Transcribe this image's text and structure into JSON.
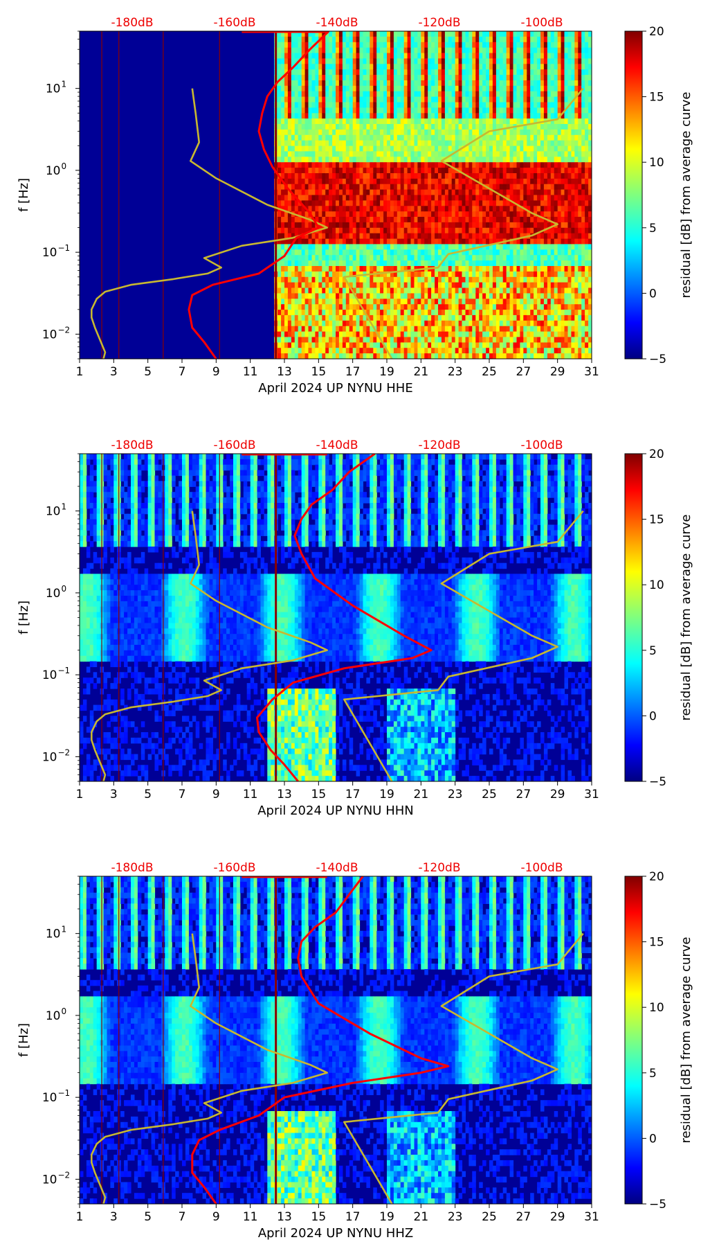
{
  "chart_data": [
    {
      "type": "heatmap",
      "title": "",
      "xlabel": "April 2024 UP NYNU  HHE",
      "ylabel": "f [Hz]",
      "x_ticks": [
        "1",
        "3",
        "5",
        "7",
        "9",
        "11",
        "13",
        "15",
        "17",
        "19",
        "21",
        "23",
        "25",
        "27",
        "29",
        "31"
      ],
      "xlim": [
        1,
        31
      ],
      "y_ticks": [
        "10^-2",
        "10^-1",
        "10^0",
        "10^1"
      ],
      "ylim": [
        0.005,
        50
      ],
      "y_scale": "log",
      "top_axis_labels": [
        "-180dB",
        "-160dB",
        "-140dB",
        "-120dB",
        "-100dB"
      ],
      "colorbar": {
        "label": "residual [dB] from average curve",
        "ticks": [
          "20",
          "15",
          "10",
          "5",
          "0",
          "−5"
        ],
        "range": [
          -5,
          20
        ],
        "colormap": "jet"
      },
      "data_gap_until_day": 12.3,
      "series": [
        {
          "name": "yellow reference curve",
          "color": "#c8b830",
          "points": [
            [
              2.4,
              0.005
            ],
            [
              2.5,
              0.006
            ],
            [
              1.9,
              0.012
            ],
            [
              1.7,
              0.016
            ],
            [
              1.7,
              0.02
            ],
            [
              2.0,
              0.027
            ],
            [
              2.5,
              0.033
            ],
            [
              4.0,
              0.04
            ],
            [
              6.5,
              0.047
            ],
            [
              8.5,
              0.055
            ],
            [
              9.3,
              0.065
            ],
            [
              8.3,
              0.085
            ],
            [
              10.5,
              0.12
            ],
            [
              13.5,
              0.15
            ],
            [
              15.5,
              0.2
            ],
            [
              14.5,
              0.25
            ],
            [
              12.0,
              0.38
            ],
            [
              9.0,
              0.8
            ],
            [
              7.5,
              1.3
            ],
            [
              8.0,
              2.2
            ],
            [
              7.8,
              5.0
            ],
            [
              7.6,
              10.0
            ]
          ]
        },
        {
          "name": "yellow reference curve 2",
          "color": "#c8b830",
          "points": [
            [
              19.3,
              0.005
            ],
            [
              16.5,
              0.05
            ],
            [
              22.0,
              0.065
            ],
            [
              22.6,
              0.095
            ],
            [
              27.5,
              0.16
            ],
            [
              29.0,
              0.22
            ],
            [
              27.5,
              0.3
            ],
            [
              22.2,
              1.3
            ],
            [
              25.0,
              3.0
            ],
            [
              29.0,
              4.2
            ],
            [
              30.5,
              10.0
            ]
          ]
        },
        {
          "name": "red mean PSD curve",
          "color": "#ff0000",
          "points": [
            [
              9.0,
              0.005
            ],
            [
              8.3,
              0.008
            ],
            [
              7.6,
              0.012
            ],
            [
              7.4,
              0.02
            ],
            [
              7.6,
              0.03
            ],
            [
              8.8,
              0.04
            ],
            [
              11.5,
              0.055
            ],
            [
              13.0,
              0.09
            ],
            [
              13.7,
              0.15
            ],
            [
              15.0,
              0.2
            ],
            [
              14.5,
              0.3
            ],
            [
              13.2,
              0.6
            ],
            [
              12.3,
              1.1
            ],
            [
              11.8,
              1.8
            ],
            [
              11.5,
              3.0
            ],
            [
              11.7,
              5.0
            ],
            [
              12.0,
              8.0
            ],
            [
              12.6,
              12.0
            ],
            [
              13.5,
              18.0
            ],
            [
              14.5,
              30.0
            ],
            [
              15.6,
              50.0
            ]
          ]
        }
      ]
    },
    {
      "type": "heatmap",
      "title": "",
      "xlabel": "April 2024 UP NYNU  HHN",
      "ylabel": "f [Hz]",
      "x_ticks": [
        "1",
        "3",
        "5",
        "7",
        "9",
        "11",
        "13",
        "15",
        "17",
        "19",
        "21",
        "23",
        "25",
        "27",
        "29",
        "31"
      ],
      "xlim": [
        1,
        31
      ],
      "y_ticks": [
        "10^-2",
        "10^-1",
        "10^0",
        "10^1"
      ],
      "ylim": [
        0.005,
        50
      ],
      "y_scale": "log",
      "top_axis_labels": [
        "-180dB",
        "-160dB",
        "-140dB",
        "-120dB",
        "-100dB"
      ],
      "colorbar": {
        "label": "residual [dB] from average curve",
        "ticks": [
          "20",
          "15",
          "10",
          "5",
          "0",
          "−5"
        ],
        "range": [
          -5,
          20
        ],
        "colormap": "jet"
      },
      "series": [
        {
          "name": "yellow reference curve",
          "color": "#c8b830",
          "points": [
            [
              2.4,
              0.005
            ],
            [
              2.5,
              0.006
            ],
            [
              1.9,
              0.012
            ],
            [
              1.7,
              0.016
            ],
            [
              1.7,
              0.02
            ],
            [
              2.0,
              0.027
            ],
            [
              2.5,
              0.033
            ],
            [
              4.0,
              0.04
            ],
            [
              6.5,
              0.047
            ],
            [
              8.5,
              0.055
            ],
            [
              9.3,
              0.065
            ],
            [
              8.3,
              0.085
            ],
            [
              10.5,
              0.12
            ],
            [
              13.5,
              0.15
            ],
            [
              15.5,
              0.2
            ],
            [
              14.5,
              0.25
            ],
            [
              12.0,
              0.38
            ],
            [
              9.0,
              0.8
            ],
            [
              7.5,
              1.3
            ],
            [
              8.0,
              2.2
            ],
            [
              7.8,
              5.0
            ],
            [
              7.6,
              10.0
            ]
          ]
        },
        {
          "name": "yellow reference curve 2",
          "color": "#c8b830",
          "points": [
            [
              19.3,
              0.005
            ],
            [
              16.5,
              0.05
            ],
            [
              22.0,
              0.065
            ],
            [
              22.6,
              0.095
            ],
            [
              27.5,
              0.16
            ],
            [
              29.0,
              0.22
            ],
            [
              27.5,
              0.3
            ],
            [
              22.2,
              1.3
            ],
            [
              25.0,
              3.0
            ],
            [
              29.0,
              4.2
            ],
            [
              30.5,
              10.0
            ]
          ]
        },
        {
          "name": "red mean PSD curve",
          "color": "#ff0000",
          "points": [
            [
              13.8,
              0.005
            ],
            [
              13.0,
              0.008
            ],
            [
              12.2,
              0.012
            ],
            [
              11.5,
              0.02
            ],
            [
              11.4,
              0.03
            ],
            [
              12.3,
              0.05
            ],
            [
              13.5,
              0.08
            ],
            [
              16.5,
              0.12
            ],
            [
              20.5,
              0.16
            ],
            [
              21.6,
              0.2
            ],
            [
              20.0,
              0.3
            ],
            [
              17.0,
              0.7
            ],
            [
              14.8,
              1.5
            ],
            [
              14.0,
              3.0
            ],
            [
              13.6,
              5.0
            ],
            [
              14.0,
              8.0
            ],
            [
              14.6,
              12.0
            ],
            [
              15.8,
              18.0
            ],
            [
              16.8,
              30.0
            ],
            [
              18.3,
              50.0
            ]
          ]
        }
      ]
    },
    {
      "type": "heatmap",
      "title": "",
      "xlabel": "April 2024 UP NYNU  HHZ",
      "ylabel": "f [Hz]",
      "x_ticks": [
        "1",
        "3",
        "5",
        "7",
        "9",
        "11",
        "13",
        "15",
        "17",
        "19",
        "21",
        "23",
        "25",
        "27",
        "29",
        "31"
      ],
      "xlim": [
        1,
        31
      ],
      "y_ticks": [
        "10^-2",
        "10^-1",
        "10^0",
        "10^1"
      ],
      "ylim": [
        0.005,
        50
      ],
      "y_scale": "log",
      "top_axis_labels": [
        "-180dB",
        "-160dB",
        "-140dB",
        "-120dB",
        "-100dB"
      ],
      "colorbar": {
        "label": "residual [dB] from average curve",
        "ticks": [
          "20",
          "15",
          "10",
          "5",
          "0",
          "−5"
        ],
        "range": [
          -5,
          20
        ],
        "colormap": "jet"
      },
      "series": [
        {
          "name": "yellow reference curve",
          "color": "#c8b830",
          "points": [
            [
              2.4,
              0.005
            ],
            [
              2.5,
              0.006
            ],
            [
              1.9,
              0.012
            ],
            [
              1.7,
              0.016
            ],
            [
              1.7,
              0.02
            ],
            [
              2.0,
              0.027
            ],
            [
              2.5,
              0.033
            ],
            [
              4.0,
              0.04
            ],
            [
              6.5,
              0.047
            ],
            [
              8.5,
              0.055
            ],
            [
              9.3,
              0.065
            ],
            [
              8.3,
              0.085
            ],
            [
              10.5,
              0.12
            ],
            [
              13.5,
              0.15
            ],
            [
              15.5,
              0.2
            ],
            [
              14.5,
              0.25
            ],
            [
              12.0,
              0.38
            ],
            [
              9.0,
              0.8
            ],
            [
              7.5,
              1.3
            ],
            [
              8.0,
              2.2
            ],
            [
              7.8,
              5.0
            ],
            [
              7.6,
              10.0
            ]
          ]
        },
        {
          "name": "yellow reference curve 2",
          "color": "#c8b830",
          "points": [
            [
              19.3,
              0.005
            ],
            [
              16.5,
              0.05
            ],
            [
              22.0,
              0.065
            ],
            [
              22.6,
              0.095
            ],
            [
              27.5,
              0.16
            ],
            [
              29.0,
              0.22
            ],
            [
              27.5,
              0.3
            ],
            [
              22.2,
              1.3
            ],
            [
              25.0,
              3.0
            ],
            [
              29.0,
              4.2
            ],
            [
              30.5,
              10.0
            ]
          ]
        },
        {
          "name": "red mean PSD curve",
          "color": "#ff0000",
          "points": [
            [
              9.0,
              0.005
            ],
            [
              8.3,
              0.008
            ],
            [
              7.6,
              0.012
            ],
            [
              7.6,
              0.02
            ],
            [
              8.0,
              0.03
            ],
            [
              9.2,
              0.04
            ],
            [
              11.5,
              0.06
            ],
            [
              13.0,
              0.1
            ],
            [
              17.0,
              0.15
            ],
            [
              21.0,
              0.2
            ],
            [
              22.6,
              0.24
            ],
            [
              21.0,
              0.3
            ],
            [
              18.0,
              0.6
            ],
            [
              15.0,
              1.4
            ],
            [
              14.0,
              3.0
            ],
            [
              13.8,
              5.0
            ],
            [
              14.0,
              8.0
            ],
            [
              14.8,
              12.0
            ],
            [
              16.0,
              18.0
            ],
            [
              16.8,
              30.0
            ],
            [
              17.6,
              50.0
            ]
          ]
        }
      ]
    }
  ]
}
